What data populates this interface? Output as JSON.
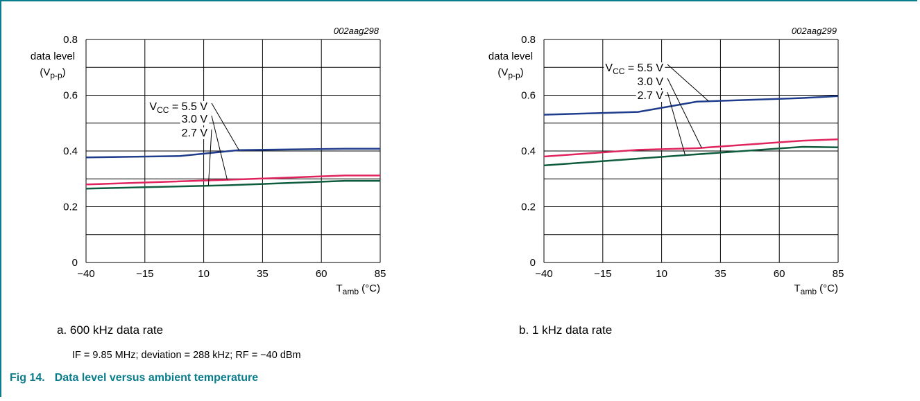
{
  "chart_data": [
    {
      "type": "line",
      "id": "002aag298",
      "ylabel_lines": [
        "data level",
        "(V",
        "p-p",
        ")"
      ],
      "xlabel": [
        "T",
        "amb",
        " (°C)"
      ],
      "xlim": [
        -40,
        85
      ],
      "ylim": [
        0,
        0.8
      ],
      "x_ticks": [
        "−40",
        "−15",
        "10",
        "35",
        "60",
        "85"
      ],
      "y_ticks": [
        "0",
        "0.2",
        "0.4",
        "0.6",
        "0.8"
      ],
      "grid": true,
      "series": [
        {
          "name": "V_CC = 5.5 V",
          "label_main": "V",
          "label_sub": "CC",
          "label_rest": " = 5.5 V",
          "color": "#1f3d8c",
          "x": [
            -40,
            0,
            25,
            70,
            85
          ],
          "y": [
            0.377,
            0.382,
            0.403,
            0.408,
            0.408
          ]
        },
        {
          "name": "3.0 V",
          "label_main": "3.0 V",
          "color": "#e0245e",
          "x": [
            -40,
            25,
            70,
            85
          ],
          "y": [
            0.28,
            0.298,
            0.312,
            0.312
          ]
        },
        {
          "name": "2.7 V",
          "label_main": "2.7 V",
          "color": "#0f5c3e",
          "x": [
            -40,
            20,
            70,
            85
          ],
          "y": [
            0.265,
            0.277,
            0.293,
            0.293
          ]
        }
      ],
      "caption": "a.  600 kHz data rate",
      "note": "IF = 9.85 MHz; deviation = 288 kHz; RF = −40 dBm"
    },
    {
      "type": "line",
      "id": "002aag299",
      "ylabel_lines": [
        "data level",
        "(V",
        "p-p",
        ")"
      ],
      "xlabel": [
        "T",
        "amb",
        " (°C)"
      ],
      "xlim": [
        -40,
        85
      ],
      "ylim": [
        0,
        0.8
      ],
      "x_ticks": [
        "−40",
        "−15",
        "10",
        "35",
        "60",
        "85"
      ],
      "y_ticks": [
        "0",
        "0.2",
        "0.4",
        "0.6",
        "0.8"
      ],
      "grid": true,
      "series": [
        {
          "name": "V_CC = 5.5 V",
          "label_main": "V",
          "label_sub": "CC",
          "label_rest": " = 5.5 V",
          "color": "#1f3d8c",
          "x": [
            -40,
            0,
            25,
            70,
            85
          ],
          "y": [
            0.53,
            0.54,
            0.577,
            0.59,
            0.597
          ]
        },
        {
          "name": "3.0 V",
          "label_main": "3.0 V",
          "color": "#e0245e",
          "x": [
            -40,
            0,
            25,
            70,
            85
          ],
          "y": [
            0.38,
            0.404,
            0.41,
            0.437,
            0.442
          ]
        },
        {
          "name": "2.7 V",
          "label_main": "2.7 V",
          "color": "#0f5c3e",
          "x": [
            -40,
            20,
            70,
            85
          ],
          "y": [
            0.348,
            0.385,
            0.415,
            0.413
          ]
        }
      ],
      "caption": "b.  1 kHz data rate"
    }
  ],
  "figure": {
    "number": "Fig 14.",
    "title": "Data level versus ambient temperature"
  }
}
